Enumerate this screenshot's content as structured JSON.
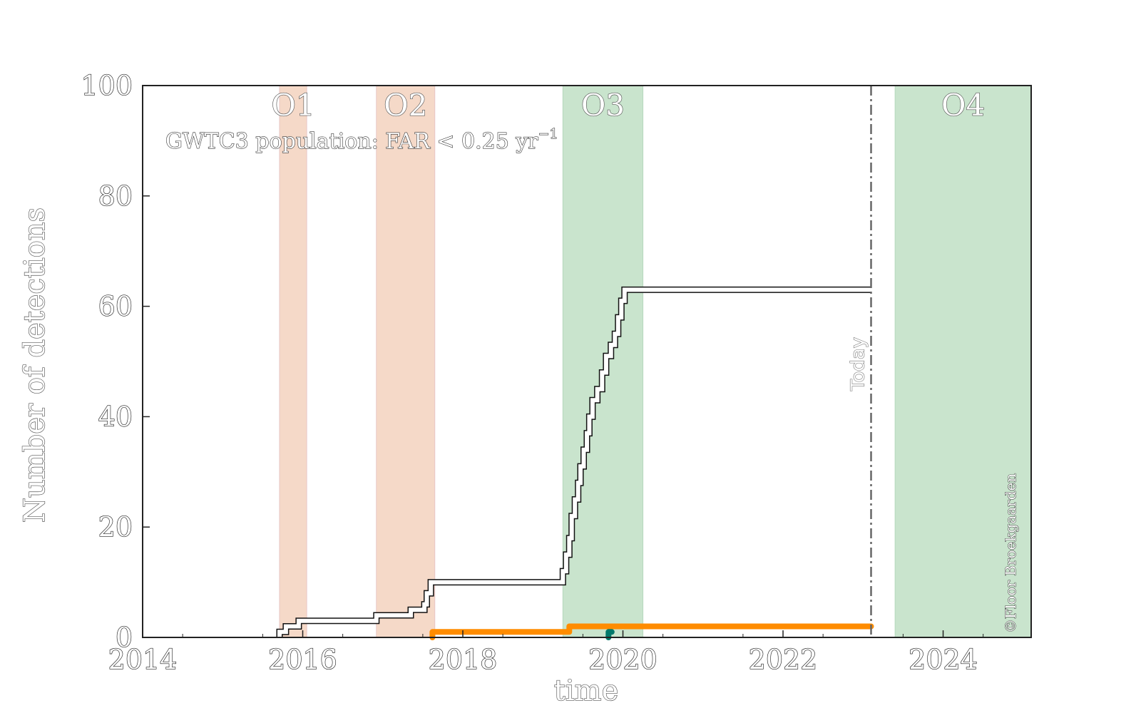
{
  "chart_data": {
    "type": "line",
    "title": "",
    "xlabel": "time",
    "ylabel": "Number of detections",
    "xlim": [
      2014.0,
      2025.1
    ],
    "ylim": [
      0,
      100
    ],
    "x_ticks": [
      2014,
      2016,
      2018,
      2020,
      2022,
      2024
    ],
    "x_tick_labels": [
      "2014",
      "2016",
      "2018",
      "2020",
      "2022",
      "2024"
    ],
    "y_ticks": [
      0,
      20,
      40,
      60,
      80,
      100
    ],
    "y_tick_labels": [
      "0",
      "20",
      "40",
      "60",
      "80",
      "100"
    ],
    "grid": false,
    "annotation": "GWTC3 population: FAR < 0.25 yr",
    "annotation_superscript": "−1",
    "credit": "©Floor Broekgaarden",
    "observing_runs": [
      {
        "name": "O1",
        "start": 2015.71,
        "end": 2016.05,
        "color": "#f5d9c8"
      },
      {
        "name": "O2",
        "start": 2016.92,
        "end": 2017.65,
        "color": "#f5d9c8"
      },
      {
        "name": "O3",
        "start": 2019.25,
        "end": 2020.25,
        "color": "#c9e4cd"
      },
      {
        "name": "O4",
        "start": 2023.4,
        "end": 2025.1,
        "color": "#c9e4cd"
      }
    ],
    "today": {
      "label": "Today",
      "x": 2023.1
    },
    "series": [
      {
        "color": "#ffffff",
        "points": [
          [
            2015.71,
            0
          ],
          [
            2015.71,
            1
          ],
          [
            2015.79,
            1
          ],
          [
            2015.79,
            2
          ],
          [
            2015.95,
            2
          ],
          [
            2015.95,
            3
          ],
          [
            2016.92,
            3
          ],
          [
            2016.92,
            4
          ],
          [
            2017.35,
            4
          ],
          [
            2017.35,
            5
          ],
          [
            2017.52,
            5
          ],
          [
            2017.52,
            6
          ],
          [
            2017.55,
            6
          ],
          [
            2017.55,
            8
          ],
          [
            2017.6,
            8
          ],
          [
            2017.6,
            10
          ],
          [
            2019.25,
            10
          ],
          [
            2019.25,
            12
          ],
          [
            2019.29,
            12
          ],
          [
            2019.29,
            15
          ],
          [
            2019.33,
            15
          ],
          [
            2019.33,
            18
          ],
          [
            2019.36,
            18
          ],
          [
            2019.36,
            22
          ],
          [
            2019.4,
            22
          ],
          [
            2019.4,
            25
          ],
          [
            2019.44,
            25
          ],
          [
            2019.44,
            28
          ],
          [
            2019.47,
            28
          ],
          [
            2019.47,
            31
          ],
          [
            2019.51,
            31
          ],
          [
            2019.51,
            34
          ],
          [
            2019.55,
            34
          ],
          [
            2019.55,
            37
          ],
          [
            2019.58,
            37
          ],
          [
            2019.58,
            40
          ],
          [
            2019.62,
            40
          ],
          [
            2019.62,
            43
          ],
          [
            2019.68,
            43
          ],
          [
            2019.68,
            45
          ],
          [
            2019.74,
            45
          ],
          [
            2019.74,
            48
          ],
          [
            2019.79,
            48
          ],
          [
            2019.79,
            51
          ],
          [
            2019.85,
            51
          ],
          [
            2019.85,
            53
          ],
          [
            2019.9,
            53
          ],
          [
            2019.9,
            55
          ],
          [
            2019.94,
            55
          ],
          [
            2019.94,
            58
          ],
          [
            2019.98,
            58
          ],
          [
            2019.98,
            61
          ],
          [
            2020.02,
            61
          ],
          [
            2020.02,
            63
          ],
          [
            2020.25,
            63
          ],
          [
            2023.1,
            63
          ]
        ]
      },
      {
        "color": "#ff8c00",
        "points": [
          [
            2017.62,
            0
          ],
          [
            2017.62,
            1
          ],
          [
            2019.33,
            1
          ],
          [
            2019.33,
            2
          ],
          [
            2023.1,
            2
          ]
        ]
      },
      {
        "color": "#00796b",
        "points": [
          [
            2019.82,
            0
          ],
          [
            2019.82,
            1
          ],
          [
            2019.86,
            1
          ]
        ]
      }
    ]
  }
}
